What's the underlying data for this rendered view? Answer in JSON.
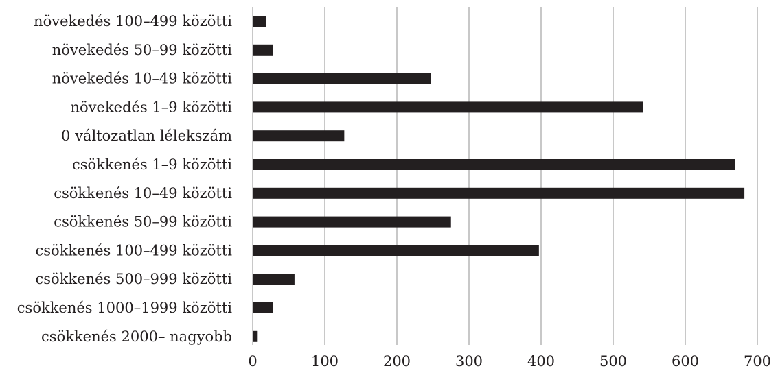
{
  "chart_data": {
    "type": "bar",
    "orientation": "horizontal",
    "categories": [
      "növekedés 100–499 közötti",
      "növekedés 50–99 közötti",
      "növekedés 10–49 közötti",
      "növekedés 1–9 közötti",
      "0 változatlan lélekszám",
      "csökkenés 1–9 közötti",
      "csökkenés 10–49 közötti",
      "csökkenés 50–99 közötti",
      "csökkenés 100–499 közötti",
      "csökkenés 500–999 közötti",
      "csökkenés 1000–1999 közötti",
      "csökkenés 2000– nagyobb"
    ],
    "values": [
      19,
      28,
      247,
      541,
      127,
      669,
      682,
      275,
      397,
      58,
      28,
      6
    ],
    "xlim": [
      0,
      700
    ],
    "xticks": [
      "0",
      "100",
      "200",
      "300",
      "400",
      "500",
      "600",
      "700"
    ],
    "grid": "vertical",
    "bar_color": "#231f20",
    "grid_color": "#c8c8c8",
    "title": "",
    "xlabel": "",
    "ylabel": ""
  }
}
